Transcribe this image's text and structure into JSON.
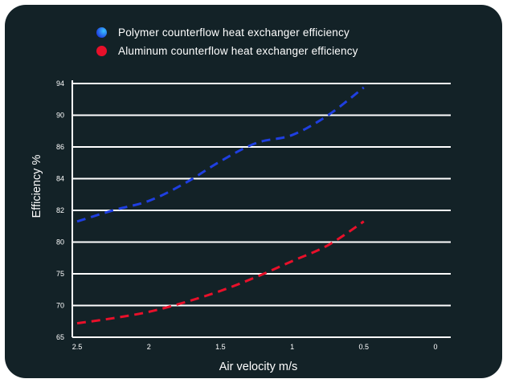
{
  "legend": {
    "items": [
      {
        "label": "Polymer counterflow heat exchanger efficiency",
        "color": "#1f3fe0",
        "highlight": "#39c2ff"
      },
      {
        "label": "Aluminum counterflow heat exchanger efficiency",
        "color": "#e8102a"
      }
    ]
  },
  "colors": {
    "background": "#132227",
    "grid": "#ffffff",
    "axis": "#ffffff",
    "text": "#ffffff"
  },
  "chart_data": {
    "type": "line",
    "xlabel": "Air velocity m/s",
    "ylabel": "Efficiency %",
    "x_ticks": [
      "2.5",
      "2",
      "1.5",
      "1",
      "0.5",
      "0"
    ],
    "y_ticks": [
      "65",
      "70",
      "75",
      "80",
      "82",
      "84",
      "86",
      "90",
      "94"
    ],
    "xlim": [
      2.5,
      0
    ],
    "y_scale": "categorical-ticks (unevenly spaced labels, evenly spaced gridlines)",
    "grid": {
      "horizontal": true,
      "vertical": false
    },
    "legend_position": "top",
    "line_style": "dashed",
    "series": [
      {
        "name": "Polymer counterflow heat exchanger efficiency",
        "color": "#1f3fe0",
        "x": [
          2.5,
          2.25,
          2.0,
          1.75,
          1.5,
          1.25,
          1.0,
          0.75,
          0.5
        ],
        "y": [
          81.3,
          82.0,
          82.6,
          83.7,
          85.1,
          86.5,
          87.5,
          90.0,
          93.5
        ]
      },
      {
        "name": "Aluminum counterflow heat exchanger efficiency",
        "color": "#e8102a",
        "x": [
          2.5,
          2.25,
          2.0,
          1.75,
          1.5,
          1.25,
          1.0,
          0.75,
          0.5
        ],
        "y": [
          67.2,
          68.0,
          69.0,
          70.5,
          72.3,
          74.5,
          77.0,
          79.5,
          81.3
        ]
      }
    ]
  }
}
